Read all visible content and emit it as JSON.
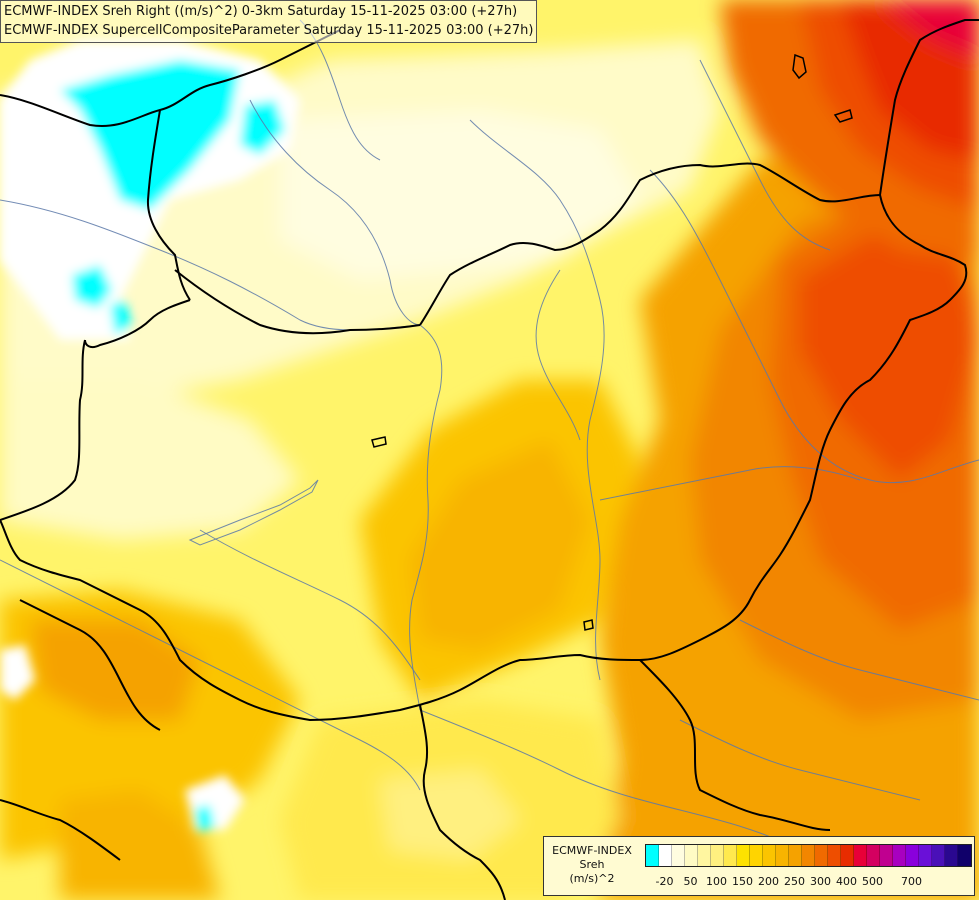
{
  "title": {
    "line1": "ECMWF-INDEX Sreh Right ((m/s)^2) 0-3km Saturday 15-11-2025 03:00 (+27h)",
    "line2": "ECMWF-INDEX SupercellCompositeParameter Saturday 15-11-2025 03:00 (+27h)"
  },
  "legend": {
    "line1": "ECMWF-INDEX",
    "line2": "Sreh",
    "line3": "(m/s)^2",
    "colors": [
      "#00ffff",
      "#ffffff",
      "#fffde0",
      "#fffbc4",
      "#fff6a0",
      "#fff080",
      "#ffe94e",
      "#fde200",
      "#ffd400",
      "#fbc400",
      "#f8b400",
      "#f5a200",
      "#f28600",
      "#f06a00",
      "#ee4e00",
      "#e82c00",
      "#e80038",
      "#d40060",
      "#c00090",
      "#a800c0",
      "#8a00dc",
      "#6a10d8",
      "#4a10b8",
      "#2a0890",
      "#10006a"
    ],
    "ticks": [
      "-20",
      "50",
      "100",
      "150",
      "200",
      "250",
      "300",
      "400",
      "500",
      "700"
    ]
  }
}
